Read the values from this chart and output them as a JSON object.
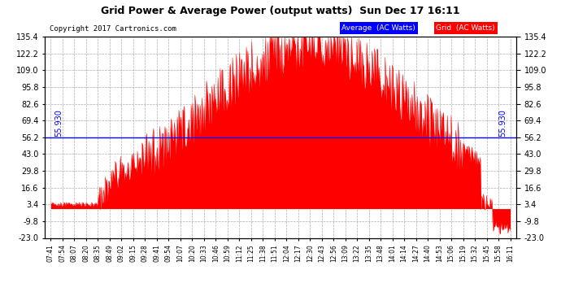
{
  "title": "Grid Power & Average Power (output watts)  Sun Dec 17 16:11",
  "copyright": "Copyright 2017 Cartronics.com",
  "average_value": 55.93,
  "y_min": -23.0,
  "y_max": 135.4,
  "y_ticks": [
    135.4,
    122.2,
    109.0,
    95.8,
    82.6,
    69.4,
    56.2,
    43.0,
    29.8,
    16.6,
    3.4,
    -9.8,
    -23.0
  ],
  "avg_label": "55.930",
  "background_color": "#ffffff",
  "grid_color": "#aaaaaa",
  "fill_color": "#ff0000",
  "avg_line_color": "#0000ff",
  "legend_avg_bg": "#0000ff",
  "legend_grid_bg": "#ff0000",
  "x_labels": [
    "07:41",
    "07:54",
    "08:07",
    "08:20",
    "08:35",
    "08:49",
    "09:02",
    "09:15",
    "09:28",
    "09:41",
    "09:54",
    "10:07",
    "10:20",
    "10:33",
    "10:46",
    "10:59",
    "11:12",
    "11:25",
    "11:38",
    "11:51",
    "12:04",
    "12:17",
    "12:30",
    "12:43",
    "12:56",
    "13:09",
    "13:22",
    "13:35",
    "13:48",
    "14:01",
    "14:14",
    "14:27",
    "14:40",
    "14:53",
    "15:06",
    "15:19",
    "15:32",
    "15:45",
    "15:58",
    "16:11"
  ]
}
